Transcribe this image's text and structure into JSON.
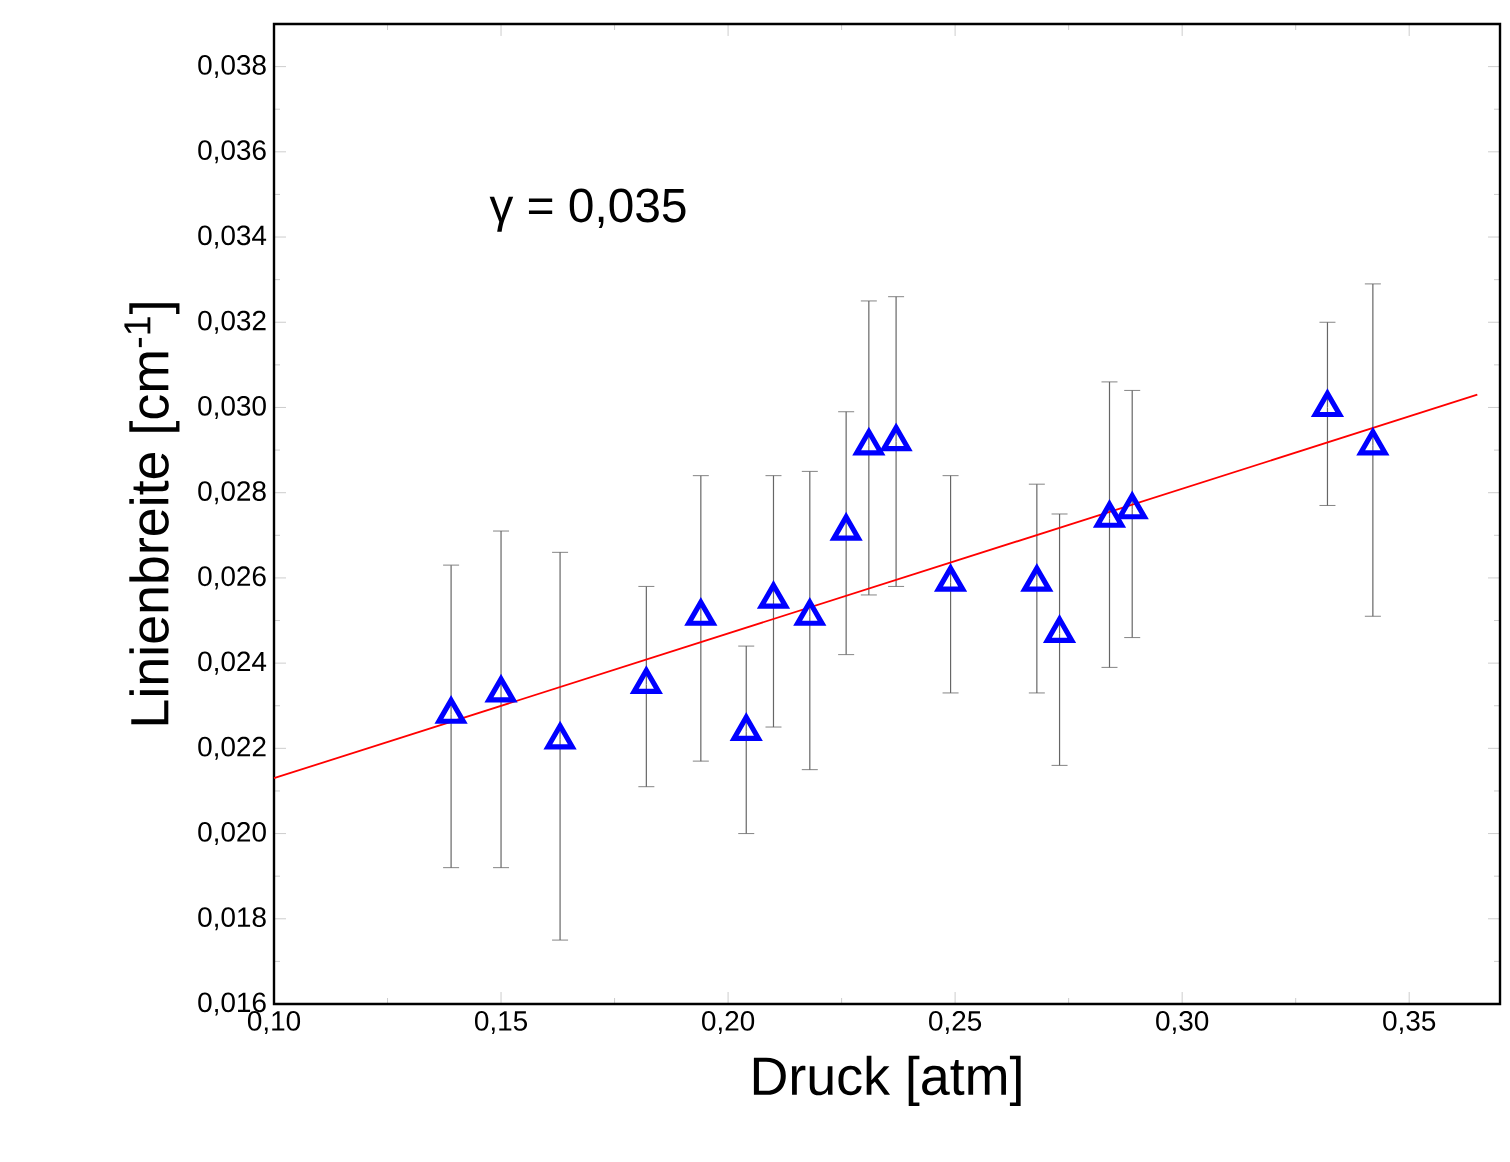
{
  "chart_data": {
    "type": "scatter",
    "xlabel": "Druck [atm]",
    "ylabel": "Linienbreite [cm$^{-1}$]",
    "annotations": [
      "γ = 0,035"
    ],
    "xlim": [
      0.1,
      0.37
    ],
    "ylim": [
      0.016,
      0.039
    ],
    "xticks": [
      {
        "value": 0.1,
        "label": "0,10"
      },
      {
        "value": 0.15,
        "label": "0,15"
      },
      {
        "value": 0.2,
        "label": "0,20"
      },
      {
        "value": 0.25,
        "label": "0,25"
      },
      {
        "value": 0.3,
        "label": "0,30"
      },
      {
        "value": 0.35,
        "label": "0,35"
      }
    ],
    "yticks": [
      {
        "value": 0.016,
        "label": "0,016"
      },
      {
        "value": 0.018,
        "label": "0,018"
      },
      {
        "value": 0.02,
        "label": "0,020"
      },
      {
        "value": 0.022,
        "label": "0,022"
      },
      {
        "value": 0.024,
        "label": "0,024"
      },
      {
        "value": 0.026,
        "label": "0,026"
      },
      {
        "value": 0.028,
        "label": "0,028"
      },
      {
        "value": 0.03,
        "label": "0,030"
      },
      {
        "value": 0.032,
        "label": "0,032"
      },
      {
        "value": 0.034,
        "label": "0,034"
      },
      {
        "value": 0.036,
        "label": "0,036"
      },
      {
        "value": 0.038,
        "label": "0,038"
      }
    ],
    "grid": false,
    "series": [
      {
        "type": "scatter",
        "color": "#0000ff",
        "marker": "triangle",
        "x": [
          0.139,
          0.15,
          0.163,
          0.182,
          0.194,
          0.204,
          0.21,
          0.218,
          0.226,
          0.231,
          0.237,
          0.249,
          0.268,
          0.273,
          0.284,
          0.289,
          0.332,
          0.342
        ],
        "values": [
          0.0228,
          0.0233,
          0.0222,
          0.0235,
          0.0251,
          0.0224,
          0.0255,
          0.0251,
          0.0271,
          0.0291,
          0.0292,
          0.0259,
          0.0259,
          0.0247,
          0.0274,
          0.0276,
          0.03,
          0.0291
        ],
        "errors": [
          [
            0.0192,
            0.0263
          ],
          [
            0.0192,
            0.0271
          ],
          [
            0.0175,
            0.0266
          ],
          [
            0.0211,
            0.0258
          ],
          [
            0.0217,
            0.0284
          ],
          [
            0.02,
            0.0244
          ],
          [
            0.0225,
            0.0284
          ],
          [
            0.0215,
            0.0285
          ],
          [
            0.0242,
            0.0299
          ],
          [
            0.0256,
            0.0325
          ],
          [
            0.0258,
            0.0326
          ],
          [
            0.0233,
            0.0284
          ],
          [
            0.0233,
            0.0282
          ],
          [
            0.0216,
            0.0275
          ],
          [
            0.0239,
            0.0306
          ],
          [
            0.0246,
            0.0304
          ],
          [
            0.0277,
            0.032
          ],
          [
            0.0251,
            0.0329
          ]
        ]
      },
      {
        "type": "line",
        "color": "#ff0000",
        "marker": "none",
        "line_style": "solid",
        "x": [
          0.1,
          0.365
        ],
        "values": [
          0.0213,
          0.0303
        ]
      }
    ]
  }
}
